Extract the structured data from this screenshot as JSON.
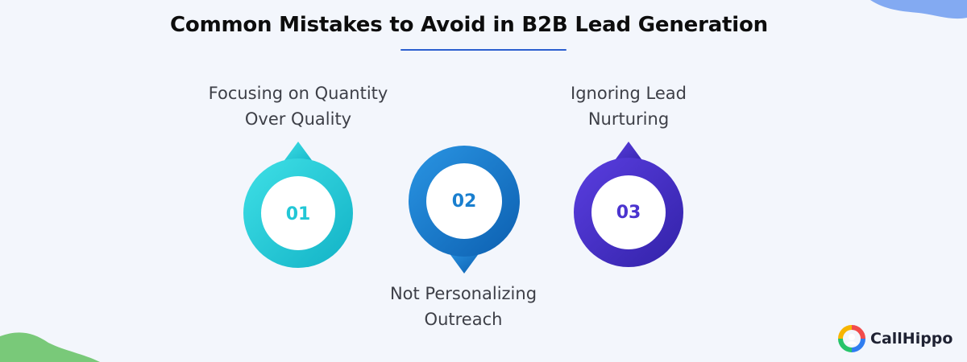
{
  "title": "Common Mistakes to Avoid in B2B Lead Generation",
  "steps": [
    {
      "number": "01",
      "label": "Focusing on Quantity\nOver Quality",
      "color": "#22c7d6"
    },
    {
      "number": "02",
      "label": "Not Personalizing\nOutreach",
      "color": "#1a7fcf"
    },
    {
      "number": "03",
      "label": "Ignoring Lead\nNurturing",
      "color": "#4b34cf"
    }
  ],
  "brand": {
    "name": "CallHippo"
  }
}
